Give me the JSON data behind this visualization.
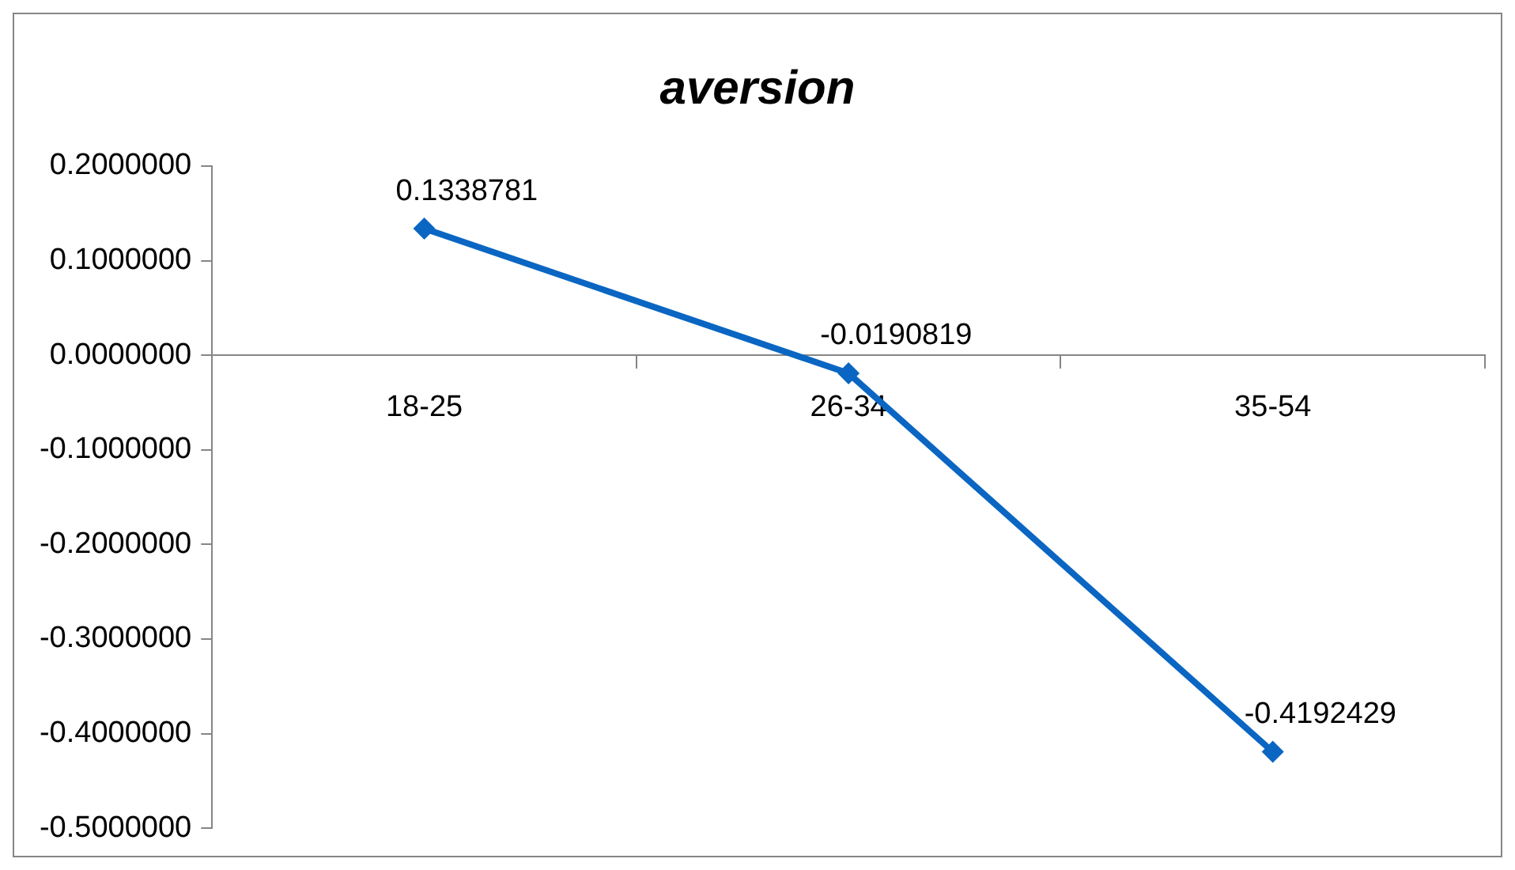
{
  "chart_data": {
    "type": "line",
    "title": "aversion",
    "categories": [
      "18-25",
      "26-34",
      "35-54"
    ],
    "series": [
      {
        "color": "#0a66c2",
        "values": [
          0.1338781,
          -0.0190819,
          -0.4192429
        ]
      }
    ],
    "ylim": [
      -0.5,
      0.2
    ],
    "yticks": [
      {
        "value": 0.2,
        "label": "0.2000000"
      },
      {
        "value": 0.1,
        "label": "0.1000000"
      },
      {
        "value": 0,
        "label": "0.0000000"
      },
      {
        "value": -0.1,
        "label": "-0.1000000"
      },
      {
        "value": -0.2,
        "label": "-0.2000000"
      },
      {
        "value": -0.3,
        "label": "-0.3000000"
      },
      {
        "value": -0.4,
        "label": "-0.4000000"
      },
      {
        "value": -0.5,
        "label": "-0.5000000"
      }
    ],
    "grid": false,
    "legend": false,
    "marker": "diamond",
    "line_style": "solid",
    "data_labels": true
  }
}
